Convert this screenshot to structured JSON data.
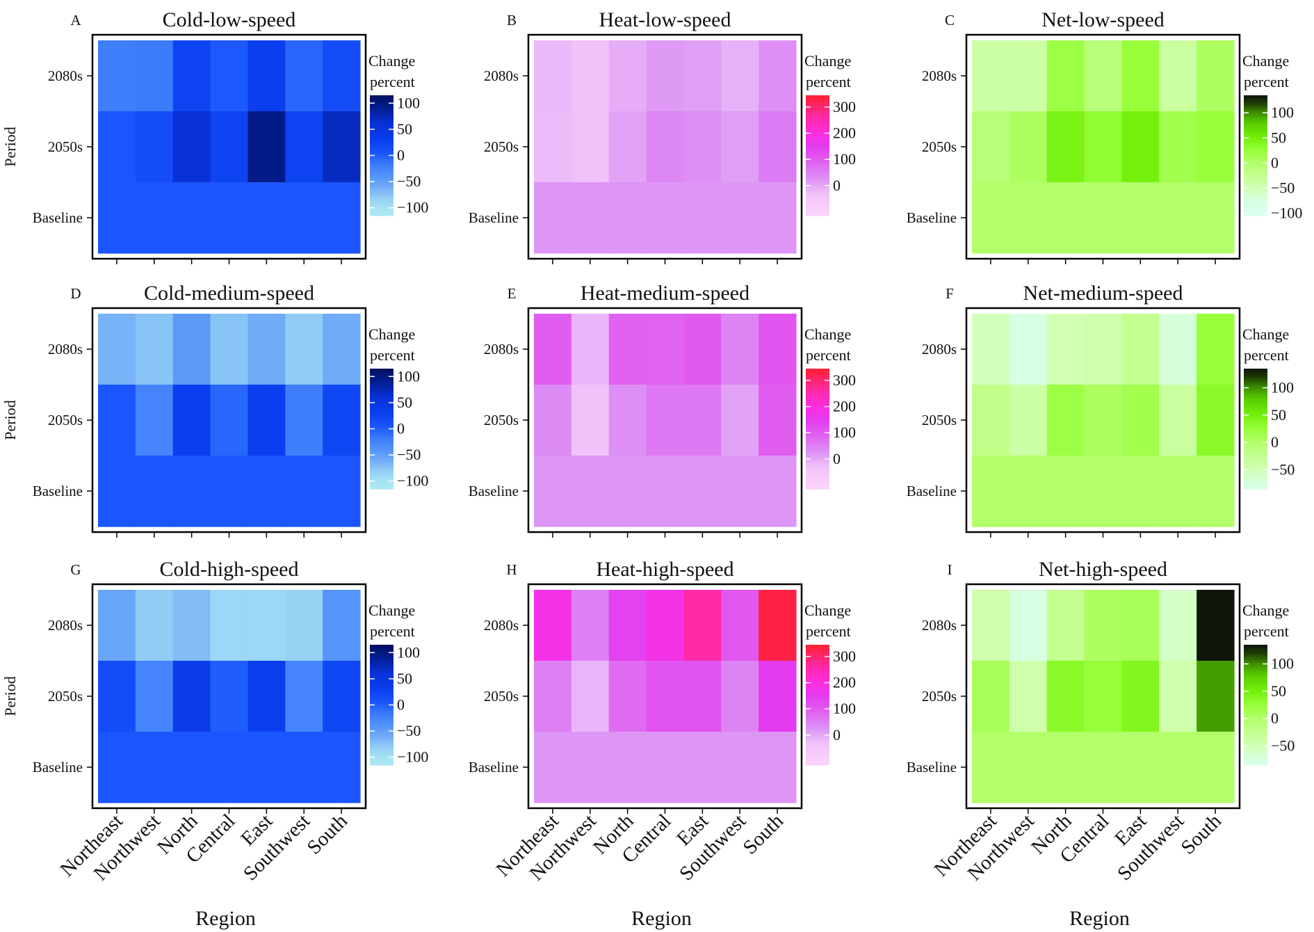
{
  "figure": {
    "x_axis_label": "Region",
    "y_axis_label": "Period",
    "legend_title_line1": "Change",
    "legend_title_line2": "percent"
  },
  "chart_data": [
    {
      "panel": "A",
      "title": "Cold-low-speed",
      "type": "heatmap",
      "palette": "cold",
      "x_categories": [
        "Northeast",
        "Northwest",
        "North",
        "Central",
        "East",
        "Southwest",
        "South"
      ],
      "y_categories": [
        "2080s",
        "2050s",
        "Baseline"
      ],
      "values": [
        [
          -20,
          -18,
          25,
          3,
          30,
          -5,
          15
        ],
        [
          5,
          15,
          60,
          25,
          95,
          25,
          70
        ],
        [
          5,
          5,
          5,
          5,
          5,
          5,
          5
        ]
      ],
      "legend_ticks": [
        100,
        50,
        0,
        -50,
        -100
      ],
      "legend_range": [
        -115,
        115
      ],
      "show_x_tick_labels": false,
      "show_x_axis_title": false,
      "show_y_axis_title": true
    },
    {
      "panel": "B",
      "title": "Heat-low-speed",
      "type": "heatmap",
      "palette": "heat",
      "x_categories": [
        "Northeast",
        "Northwest",
        "North",
        "Central",
        "East",
        "Southwest",
        "South"
      ],
      "y_categories": [
        "2080s",
        "2050s",
        "Baseline"
      ],
      "values": [
        [
          -20,
          -35,
          -5,
          15,
          10,
          -10,
          30
        ],
        [
          -25,
          -35,
          5,
          40,
          30,
          10,
          55
        ],
        [
          20,
          20,
          20,
          20,
          20,
          20,
          20
        ]
      ],
      "legend_ticks": [
        300,
        200,
        100,
        0
      ],
      "legend_range": [
        -115,
        345
      ],
      "show_x_tick_labels": false,
      "show_x_axis_title": false,
      "show_y_axis_title": false
    },
    {
      "panel": "C",
      "title": "Net-low-speed",
      "type": "heatmap",
      "palette": "net",
      "x_categories": [
        "Northeast",
        "Northwest",
        "North",
        "Central",
        "East",
        "Southwest",
        "South"
      ],
      "y_categories": [
        "2080s",
        "2050s",
        "Baseline"
      ],
      "values": [
        [
          -40,
          -40,
          20,
          -10,
          25,
          -35,
          5
        ],
        [
          -10,
          5,
          45,
          30,
          50,
          15,
          25
        ],
        [
          0,
          0,
          0,
          0,
          0,
          0,
          0
        ]
      ],
      "legend_ticks": [
        100,
        50,
        0,
        -50,
        -100
      ],
      "legend_range": [
        -105,
        135
      ],
      "show_x_tick_labels": false,
      "show_x_axis_title": false,
      "show_y_axis_title": false
    },
    {
      "panel": "D",
      "title": "Cold-medium-speed",
      "type": "heatmap",
      "palette": "cold",
      "x_categories": [
        "Northeast",
        "Northwest",
        "North",
        "Central",
        "East",
        "Southwest",
        "South"
      ],
      "y_categories": [
        "2080s",
        "2050s",
        "Baseline"
      ],
      "values": [
        [
          -65,
          -75,
          -45,
          -75,
          -60,
          -80,
          -60
        ],
        [
          5,
          -25,
          30,
          -5,
          30,
          -20,
          20
        ],
        [
          5,
          5,
          5,
          5,
          5,
          5,
          5
        ]
      ],
      "legend_ticks": [
        100,
        50,
        0,
        -50,
        -100
      ],
      "legend_range": [
        -115,
        115
      ],
      "show_x_tick_labels": false,
      "show_x_axis_title": false,
      "show_y_axis_title": true
    },
    {
      "panel": "E",
      "title": "Heat-medium-speed",
      "type": "heatmap",
      "palette": "heat",
      "x_categories": [
        "Northeast",
        "Northwest",
        "North",
        "Central",
        "East",
        "Southwest",
        "South"
      ],
      "y_categories": [
        "2080s",
        "2050s",
        "Baseline"
      ],
      "values": [
        [
          95,
          -15,
          90,
          85,
          100,
          45,
          110
        ],
        [
          35,
          -35,
          30,
          60,
          60,
          5,
          95
        ],
        [
          20,
          20,
          20,
          20,
          20,
          20,
          20
        ]
      ],
      "legend_ticks": [
        300,
        200,
        100,
        0
      ],
      "legend_range": [
        -115,
        345
      ],
      "show_x_tick_labels": false,
      "show_x_axis_title": false,
      "show_y_axis_title": false
    },
    {
      "panel": "F",
      "title": "Net-medium-speed",
      "type": "heatmap",
      "palette": "net",
      "x_categories": [
        "Northeast",
        "Northwest",
        "North",
        "Central",
        "East",
        "Southwest",
        "South"
      ],
      "y_categories": [
        "2080s",
        "2050s",
        "Baseline"
      ],
      "values": [
        [
          -55,
          -75,
          -50,
          -45,
          -25,
          -70,
          25
        ],
        [
          -20,
          -40,
          20,
          5,
          15,
          -35,
          35
        ],
        [
          0,
          0,
          0,
          0,
          0,
          0,
          0
        ]
      ],
      "legend_ticks": [
        100,
        50,
        0,
        -50
      ],
      "legend_range": [
        -85,
        135
      ],
      "show_x_tick_labels": false,
      "show_x_axis_title": false,
      "show_y_axis_title": false
    },
    {
      "panel": "G",
      "title": "Cold-high-speed",
      "type": "heatmap",
      "palette": "cold",
      "x_categories": [
        "Northeast",
        "Northwest",
        "North",
        "Central",
        "East",
        "Southwest",
        "South"
      ],
      "y_categories": [
        "2080s",
        "2050s",
        "Baseline"
      ],
      "values": [
        [
          -55,
          -80,
          -70,
          -90,
          -90,
          -85,
          -40
        ],
        [
          15,
          -25,
          35,
          0,
          30,
          -25,
          20
        ],
        [
          5,
          5,
          5,
          5,
          5,
          5,
          5
        ]
      ],
      "legend_ticks": [
        100,
        50,
        0,
        -50,
        -100
      ],
      "legend_range": [
        -115,
        115
      ],
      "show_x_tick_labels": true,
      "show_x_axis_title": true,
      "show_y_axis_title": true
    },
    {
      "panel": "H",
      "title": "Heat-high-speed",
      "type": "heatmap",
      "palette": "heat",
      "x_categories": [
        "Northeast",
        "Northwest",
        "North",
        "Central",
        "East",
        "Southwest",
        "South"
      ],
      "y_categories": [
        "2080s",
        "2050s",
        "Baseline"
      ],
      "values": [
        [
          180,
          50,
          140,
          180,
          260,
          105,
          330
        ],
        [
          50,
          -15,
          75,
          110,
          110,
          45,
          150
        ],
        [
          20,
          20,
          20,
          20,
          20,
          20,
          20
        ]
      ],
      "legend_ticks": [
        300,
        200,
        100,
        0
      ],
      "legend_range": [
        -115,
        345
      ],
      "show_x_tick_labels": true,
      "show_x_axis_title": true,
      "show_y_axis_title": false
    },
    {
      "panel": "I",
      "title": "Net-high-speed",
      "type": "heatmap",
      "palette": "net",
      "x_categories": [
        "Northeast",
        "Northwest",
        "North",
        "Central",
        "East",
        "Southwest",
        "South"
      ],
      "y_categories": [
        "2080s",
        "2050s",
        "Baseline"
      ],
      "values": [
        [
          -45,
          -75,
          -25,
          5,
          10,
          -60,
          135
        ],
        [
          10,
          -45,
          35,
          25,
          40,
          -45,
          95
        ],
        [
          0,
          0,
          0,
          0,
          0,
          0,
          0
        ]
      ],
      "legend_ticks": [
        100,
        50,
        0,
        -50
      ],
      "legend_range": [
        -85,
        135
      ],
      "show_x_tick_labels": true,
      "show_x_axis_title": true,
      "show_y_axis_title": false
    }
  ],
  "colors": {
    "cold": [
      [
        -115,
        "#aee8f3"
      ],
      [
        -100,
        "#a6e2f5"
      ],
      [
        -80,
        "#92ccf5"
      ],
      [
        -60,
        "#6fabf7"
      ],
      [
        -40,
        "#5594fb"
      ],
      [
        -20,
        "#3f7ffb"
      ],
      [
        5,
        "#1a55fd"
      ],
      [
        30,
        "#0a3eee"
      ],
      [
        60,
        "#0832d8"
      ],
      [
        85,
        "#05219d"
      ],
      [
        115,
        "#00105e"
      ]
    ],
    "heat": [
      [
        -115,
        "#fbd4fb"
      ],
      [
        -40,
        "#f3c5fb"
      ],
      [
        -15,
        "#e9b5f8"
      ],
      [
        20,
        "#dd96f6"
      ],
      [
        50,
        "#dd80f4"
      ],
      [
        90,
        "#e060f0"
      ],
      [
        150,
        "#e33cf0"
      ],
      [
        200,
        "#ff2de0"
      ],
      [
        260,
        "#ff2aa8"
      ],
      [
        330,
        "#ff2244"
      ],
      [
        345,
        "#ff2238"
      ]
    ],
    "net": [
      [
        -105,
        "#d8fff0"
      ],
      [
        -75,
        "#d7ffe2"
      ],
      [
        -50,
        "#d2ffb4"
      ],
      [
        -25,
        "#c4ff92"
      ],
      [
        0,
        "#b2ff6a"
      ],
      [
        25,
        "#98ff3a"
      ],
      [
        50,
        "#74f00c"
      ],
      [
        80,
        "#57cc00"
      ],
      [
        100,
        "#3e8f00"
      ],
      [
        120,
        "#1c3a04"
      ],
      [
        135,
        "#10150c"
      ]
    ]
  }
}
